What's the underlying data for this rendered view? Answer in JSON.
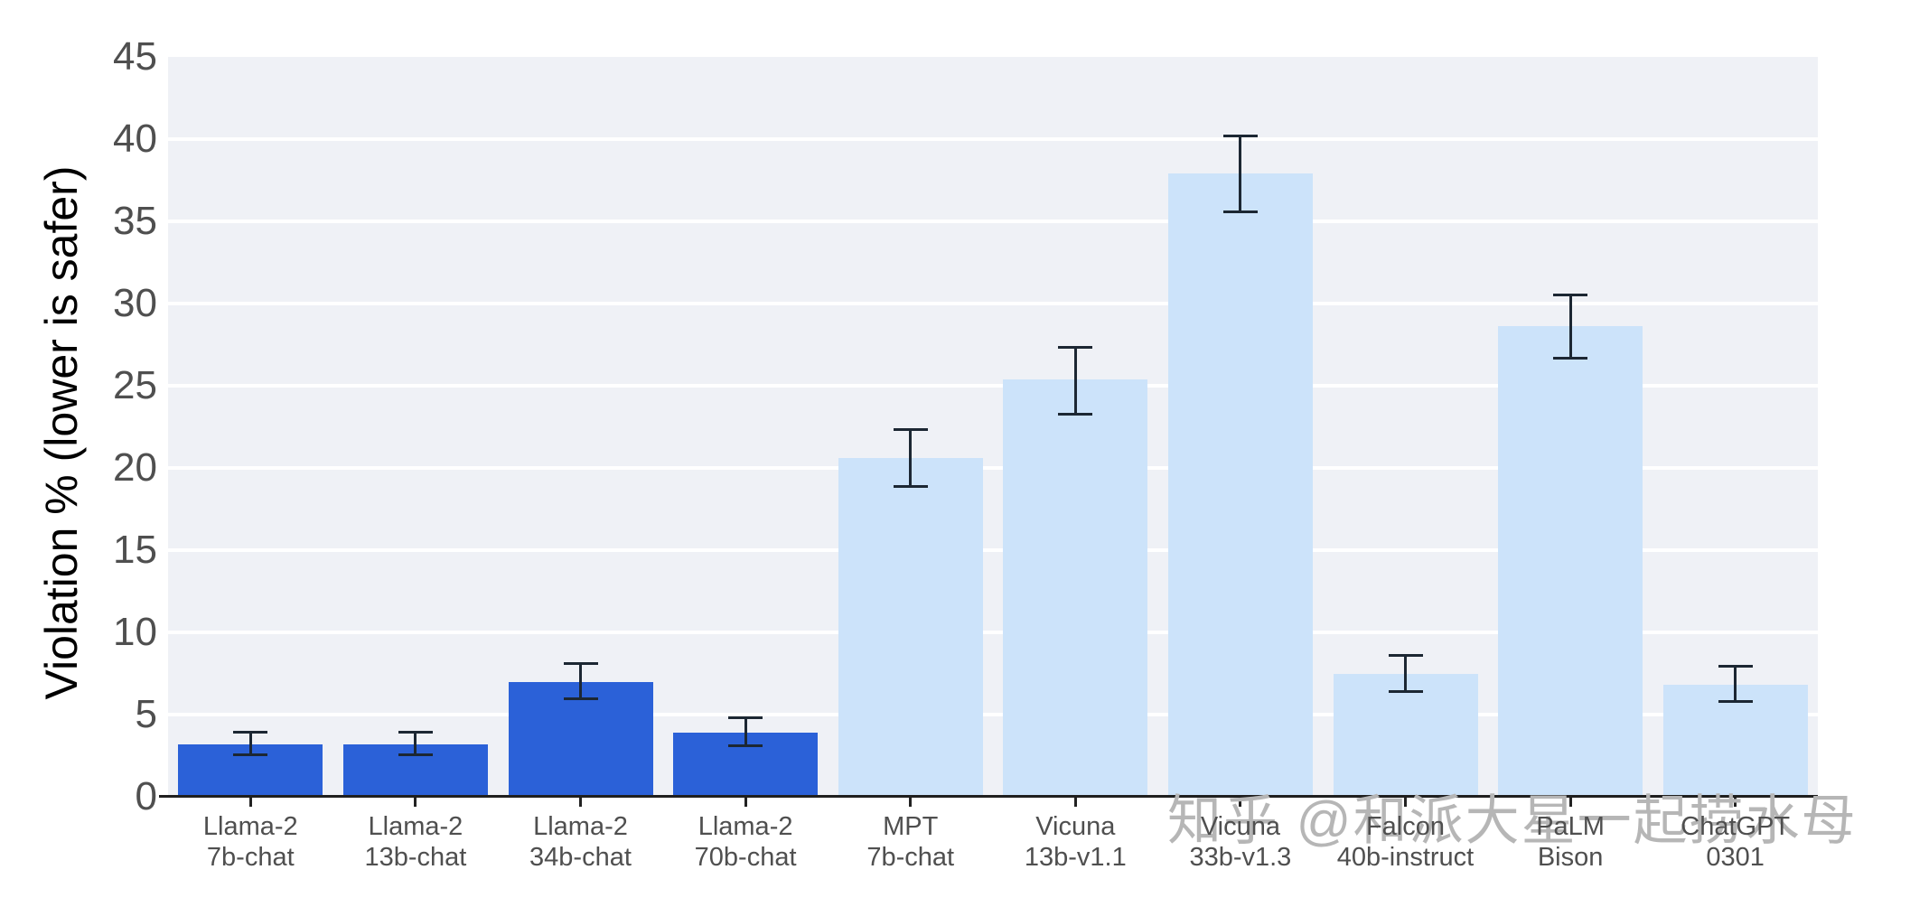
{
  "chart_data": {
    "type": "bar",
    "title": "",
    "xlabel": "",
    "ylabel": "Violation % (lower is safer)",
    "ylim": [
      0,
      45
    ],
    "yticks": [
      0,
      5,
      10,
      15,
      20,
      25,
      30,
      35,
      40,
      45
    ],
    "grid": "horizontal-white-on-gray",
    "legend": "none",
    "bars": [
      {
        "label_line1": "Llama-2",
        "label_line2": "7b-chat",
        "value": 3.2,
        "ci_low": 2.5,
        "ci_high": 4.0,
        "group": "dark"
      },
      {
        "label_line1": "Llama-2",
        "label_line2": "13b-chat",
        "value": 3.2,
        "ci_low": 2.5,
        "ci_high": 4.0,
        "group": "dark"
      },
      {
        "label_line1": "Llama-2",
        "label_line2": "34b-chat",
        "value": 7.0,
        "ci_low": 5.9,
        "ci_high": 8.2,
        "group": "dark"
      },
      {
        "label_line1": "Llama-2",
        "label_line2": "70b-chat",
        "value": 3.9,
        "ci_low": 3.0,
        "ci_high": 4.9,
        "group": "dark"
      },
      {
        "label_line1": "MPT",
        "label_line2": "7b-chat",
        "value": 20.6,
        "ci_low": 18.8,
        "ci_high": 22.4,
        "group": "light"
      },
      {
        "label_line1": "Vicuna",
        "label_line2": "13b-v1.1",
        "value": 25.4,
        "ci_low": 23.2,
        "ci_high": 27.4,
        "group": "light"
      },
      {
        "label_line1": "Vicuna",
        "label_line2": "33b-v1.3",
        "value": 37.9,
        "ci_low": 35.5,
        "ci_high": 40.3,
        "group": "light"
      },
      {
        "label_line1": "Falcon",
        "label_line2": "40b-instruct",
        "value": 7.5,
        "ci_low": 6.3,
        "ci_high": 8.7,
        "group": "light"
      },
      {
        "label_line1": "PaLM",
        "label_line2": "Bison",
        "value": 28.6,
        "ci_low": 26.6,
        "ci_high": 30.6,
        "group": "light"
      },
      {
        "label_line1": "ChatGPT",
        "label_line2": "0301",
        "value": 6.8,
        "ci_low": 5.7,
        "ci_high": 8.0,
        "group": "light"
      }
    ],
    "colors": {
      "bar_dark": "#2b61d8",
      "bar_light": "#cce3fa",
      "error_bar": "#1c2733",
      "plot_background": "#eff1f6",
      "gridline": "#ffffff",
      "axis_line": "#1f1f1f",
      "tick_label": "#4f4f4f",
      "axis_title": "#000000",
      "watermark": "#b6b6b6"
    }
  },
  "watermark": {
    "text": "知乎 @和派大星一起捞水母"
  }
}
